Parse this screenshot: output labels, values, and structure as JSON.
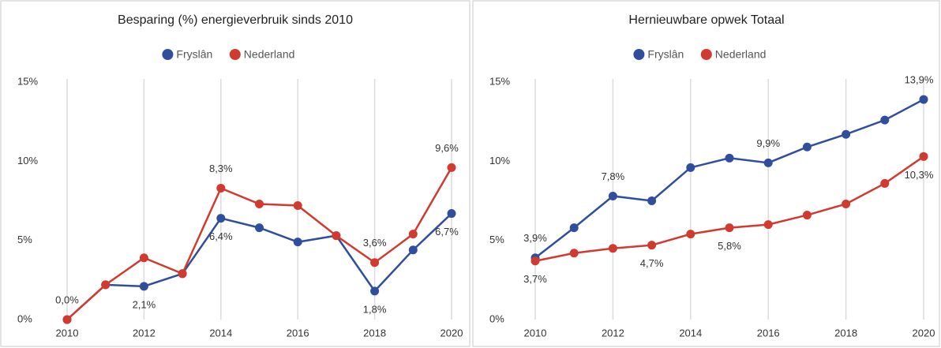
{
  "chart_data": [
    {
      "type": "line",
      "title": "Besparing (%) energieverbruik sinds 2010",
      "x": [
        2010,
        2011,
        2012,
        2013,
        2014,
        2015,
        2016,
        2017,
        2018,
        2019,
        2020
      ],
      "xlim": [
        2010,
        2020
      ],
      "xticks": [
        2010,
        2012,
        2014,
        2016,
        2018,
        2020
      ],
      "ylim": [
        0,
        15
      ],
      "yticks": [
        {
          "value": 0,
          "label": "0%"
        },
        {
          "value": 5,
          "label": "5%"
        },
        {
          "value": 10,
          "label": "10%"
        },
        {
          "value": 15,
          "label": "15%"
        }
      ],
      "grid": "x",
      "legend": "top",
      "series": [
        {
          "name": "Fryslân",
          "color": "#2f4f9e",
          "values": [
            0,
            2.2,
            2.1,
            2.9,
            6.4,
            5.8,
            4.9,
            5.3,
            1.8,
            4.4,
            6.7
          ],
          "value_labels": [
            "0,0%",
            null,
            "2,1%",
            null,
            "6,4%",
            null,
            null,
            null,
            "1,8%",
            null,
            "6,7%"
          ]
        },
        {
          "name": "Nederland",
          "color": "#d13a2f",
          "values": [
            0,
            2.2,
            3.9,
            2.9,
            8.3,
            7.3,
            7.2,
            5.3,
            3.6,
            5.4,
            9.6
          ],
          "value_labels": [
            null,
            null,
            null,
            null,
            "8,3%",
            null,
            null,
            null,
            "3,6%",
            null,
            "9,6%"
          ]
        }
      ]
    },
    {
      "type": "line",
      "title": "Hernieuwbare opwek Totaal",
      "x": [
        2010,
        2011,
        2012,
        2013,
        2014,
        2015,
        2016,
        2017,
        2018,
        2019,
        2020
      ],
      "xlim": [
        2010,
        2020
      ],
      "xticks": [
        2010,
        2012,
        2014,
        2016,
        2018,
        2020
      ],
      "ylim": [
        0,
        15
      ],
      "yticks": [
        {
          "value": 0,
          "label": "0%"
        },
        {
          "value": 5,
          "label": "5%"
        },
        {
          "value": 10,
          "label": "10%"
        },
        {
          "value": 15,
          "label": "15%"
        }
      ],
      "grid": "x",
      "legend": "top",
      "series": [
        {
          "name": "Fryslân",
          "color": "#2f4f9e",
          "values": [
            3.9,
            5.8,
            7.8,
            7.5,
            9.6,
            10.2,
            9.9,
            10.9,
            11.7,
            12.6,
            13.9
          ],
          "value_labels": [
            "3,9%",
            null,
            "7,8%",
            null,
            null,
            null,
            "9,9%",
            null,
            null,
            null,
            "13,9%"
          ]
        },
        {
          "name": "Nederland",
          "color": "#d13a2f",
          "values": [
            3.7,
            4.2,
            4.5,
            4.7,
            5.4,
            5.8,
            6.0,
            6.6,
            7.3,
            8.6,
            10.3
          ],
          "value_labels": [
            "3,7%",
            null,
            null,
            "4,7%",
            null,
            "5,8%",
            null,
            null,
            null,
            null,
            "10,3%"
          ]
        }
      ]
    }
  ]
}
